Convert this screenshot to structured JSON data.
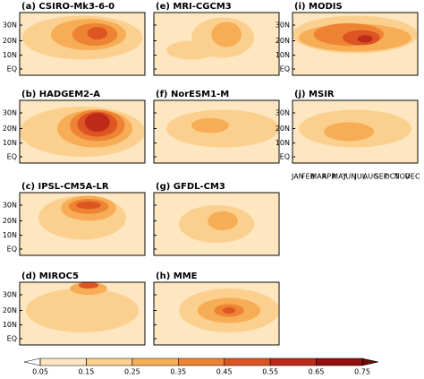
{
  "panels": [
    {
      "title": "(a) CSIRO-Mk3-6-0",
      "yticks": [
        "30N",
        "20N",
        "10N",
        "EQ"
      ]
    },
    {
      "title": "(e) MRI-CGCM3",
      "yticks": []
    },
    {
      "title": "(i) MODIS",
      "yticks": [
        "30N",
        "20N",
        "10N",
        "EQ"
      ]
    },
    {
      "title": "(b) HADGEM2-A",
      "yticks": [
        "30N",
        "20N",
        "10N",
        "EQ"
      ]
    },
    {
      "title": "(f) NorESM1-M",
      "yticks": []
    },
    {
      "title": "(j) MSIR",
      "yticks": [
        "30N",
        "20N",
        "10N",
        "EQ"
      ]
    },
    {
      "title": "(c) IPSL-CM5A-LR",
      "yticks": [
        "30N",
        "20N",
        "10N",
        "EQ"
      ]
    },
    {
      "title": "(g) GFDL-CM3",
      "yticks": []
    },
    {
      "title": "(d) MIROC5",
      "yticks": [
        "30N",
        "20N",
        "10N",
        "EQ"
      ]
    },
    {
      "title": "(h) MME",
      "yticks": []
    }
  ],
  "month_labels": [
    "JAN",
    "FEB",
    "MAR",
    "APR",
    "MAY",
    "JUN",
    "JUL",
    "AUG",
    "SEP",
    "OCT",
    "NOV",
    "DEC"
  ],
  "colorbar": {
    "ticks": [
      0.05,
      0.15,
      0.25,
      0.35,
      0.45,
      0.55,
      0.65,
      0.75
    ],
    "colors": [
      "#ffffff",
      "#fde6c0",
      "#fbcf8e",
      "#f6ad55",
      "#ee8433",
      "#dc5522",
      "#bd2a17",
      "#95100e",
      "#6e0606"
    ]
  }
}
